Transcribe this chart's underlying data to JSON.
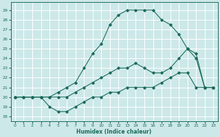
{
  "xlabel": "Humidex (Indice chaleur)",
  "ylabel": "",
  "bg_color": "#cde8e8",
  "grid_color": "#ffffff",
  "line_color": "#1a6b5a",
  "xlim": [
    -0.5,
    23.5
  ],
  "ylim": [
    17.5,
    29.8
  ],
  "xticks": [
    0,
    1,
    2,
    3,
    4,
    5,
    6,
    7,
    8,
    9,
    10,
    11,
    12,
    13,
    14,
    15,
    16,
    17,
    18,
    19,
    20,
    21,
    22,
    23
  ],
  "yticks": [
    18,
    19,
    20,
    21,
    22,
    23,
    24,
    25,
    26,
    27,
    28,
    29
  ],
  "line1_x": [
    0,
    1,
    2,
    3,
    4,
    5,
    6,
    7,
    8,
    9,
    10,
    11,
    12,
    13,
    14,
    15,
    16,
    17,
    18,
    19,
    20,
    21,
    22,
    23
  ],
  "line1_y": [
    20,
    20,
    20,
    20,
    20,
    20.5,
    21,
    21.5,
    23,
    24.5,
    25.5,
    27.5,
    28.5,
    29.0,
    29.0,
    29.0,
    29.0,
    28.0,
    27.5,
    26.5,
    25.0,
    24.5,
    21.0,
    21.0
  ],
  "line2_x": [
    0,
    1,
    2,
    3,
    4,
    5,
    6,
    7,
    8,
    9,
    10,
    11,
    12,
    13,
    14,
    15,
    16,
    17,
    18,
    19,
    20,
    21,
    22,
    23
  ],
  "line2_y": [
    20,
    20,
    20,
    20,
    20,
    20,
    20,
    20.5,
    21,
    21.5,
    22,
    22.5,
    23,
    23,
    23.5,
    23,
    22.5,
    22.5,
    23,
    24,
    25,
    24,
    21,
    21
  ],
  "line3_x": [
    0,
    1,
    2,
    3,
    4,
    5,
    6,
    7,
    8,
    9,
    10,
    11,
    12,
    13,
    14,
    15,
    16,
    17,
    18,
    19,
    20,
    21,
    22,
    23
  ],
  "line3_y": [
    20,
    20,
    20,
    20,
    19,
    18.5,
    18.5,
    19,
    19.5,
    20,
    20,
    20.5,
    20.5,
    21,
    21,
    21,
    21,
    21.5,
    22,
    22.5,
    22.5,
    21,
    21,
    21
  ]
}
